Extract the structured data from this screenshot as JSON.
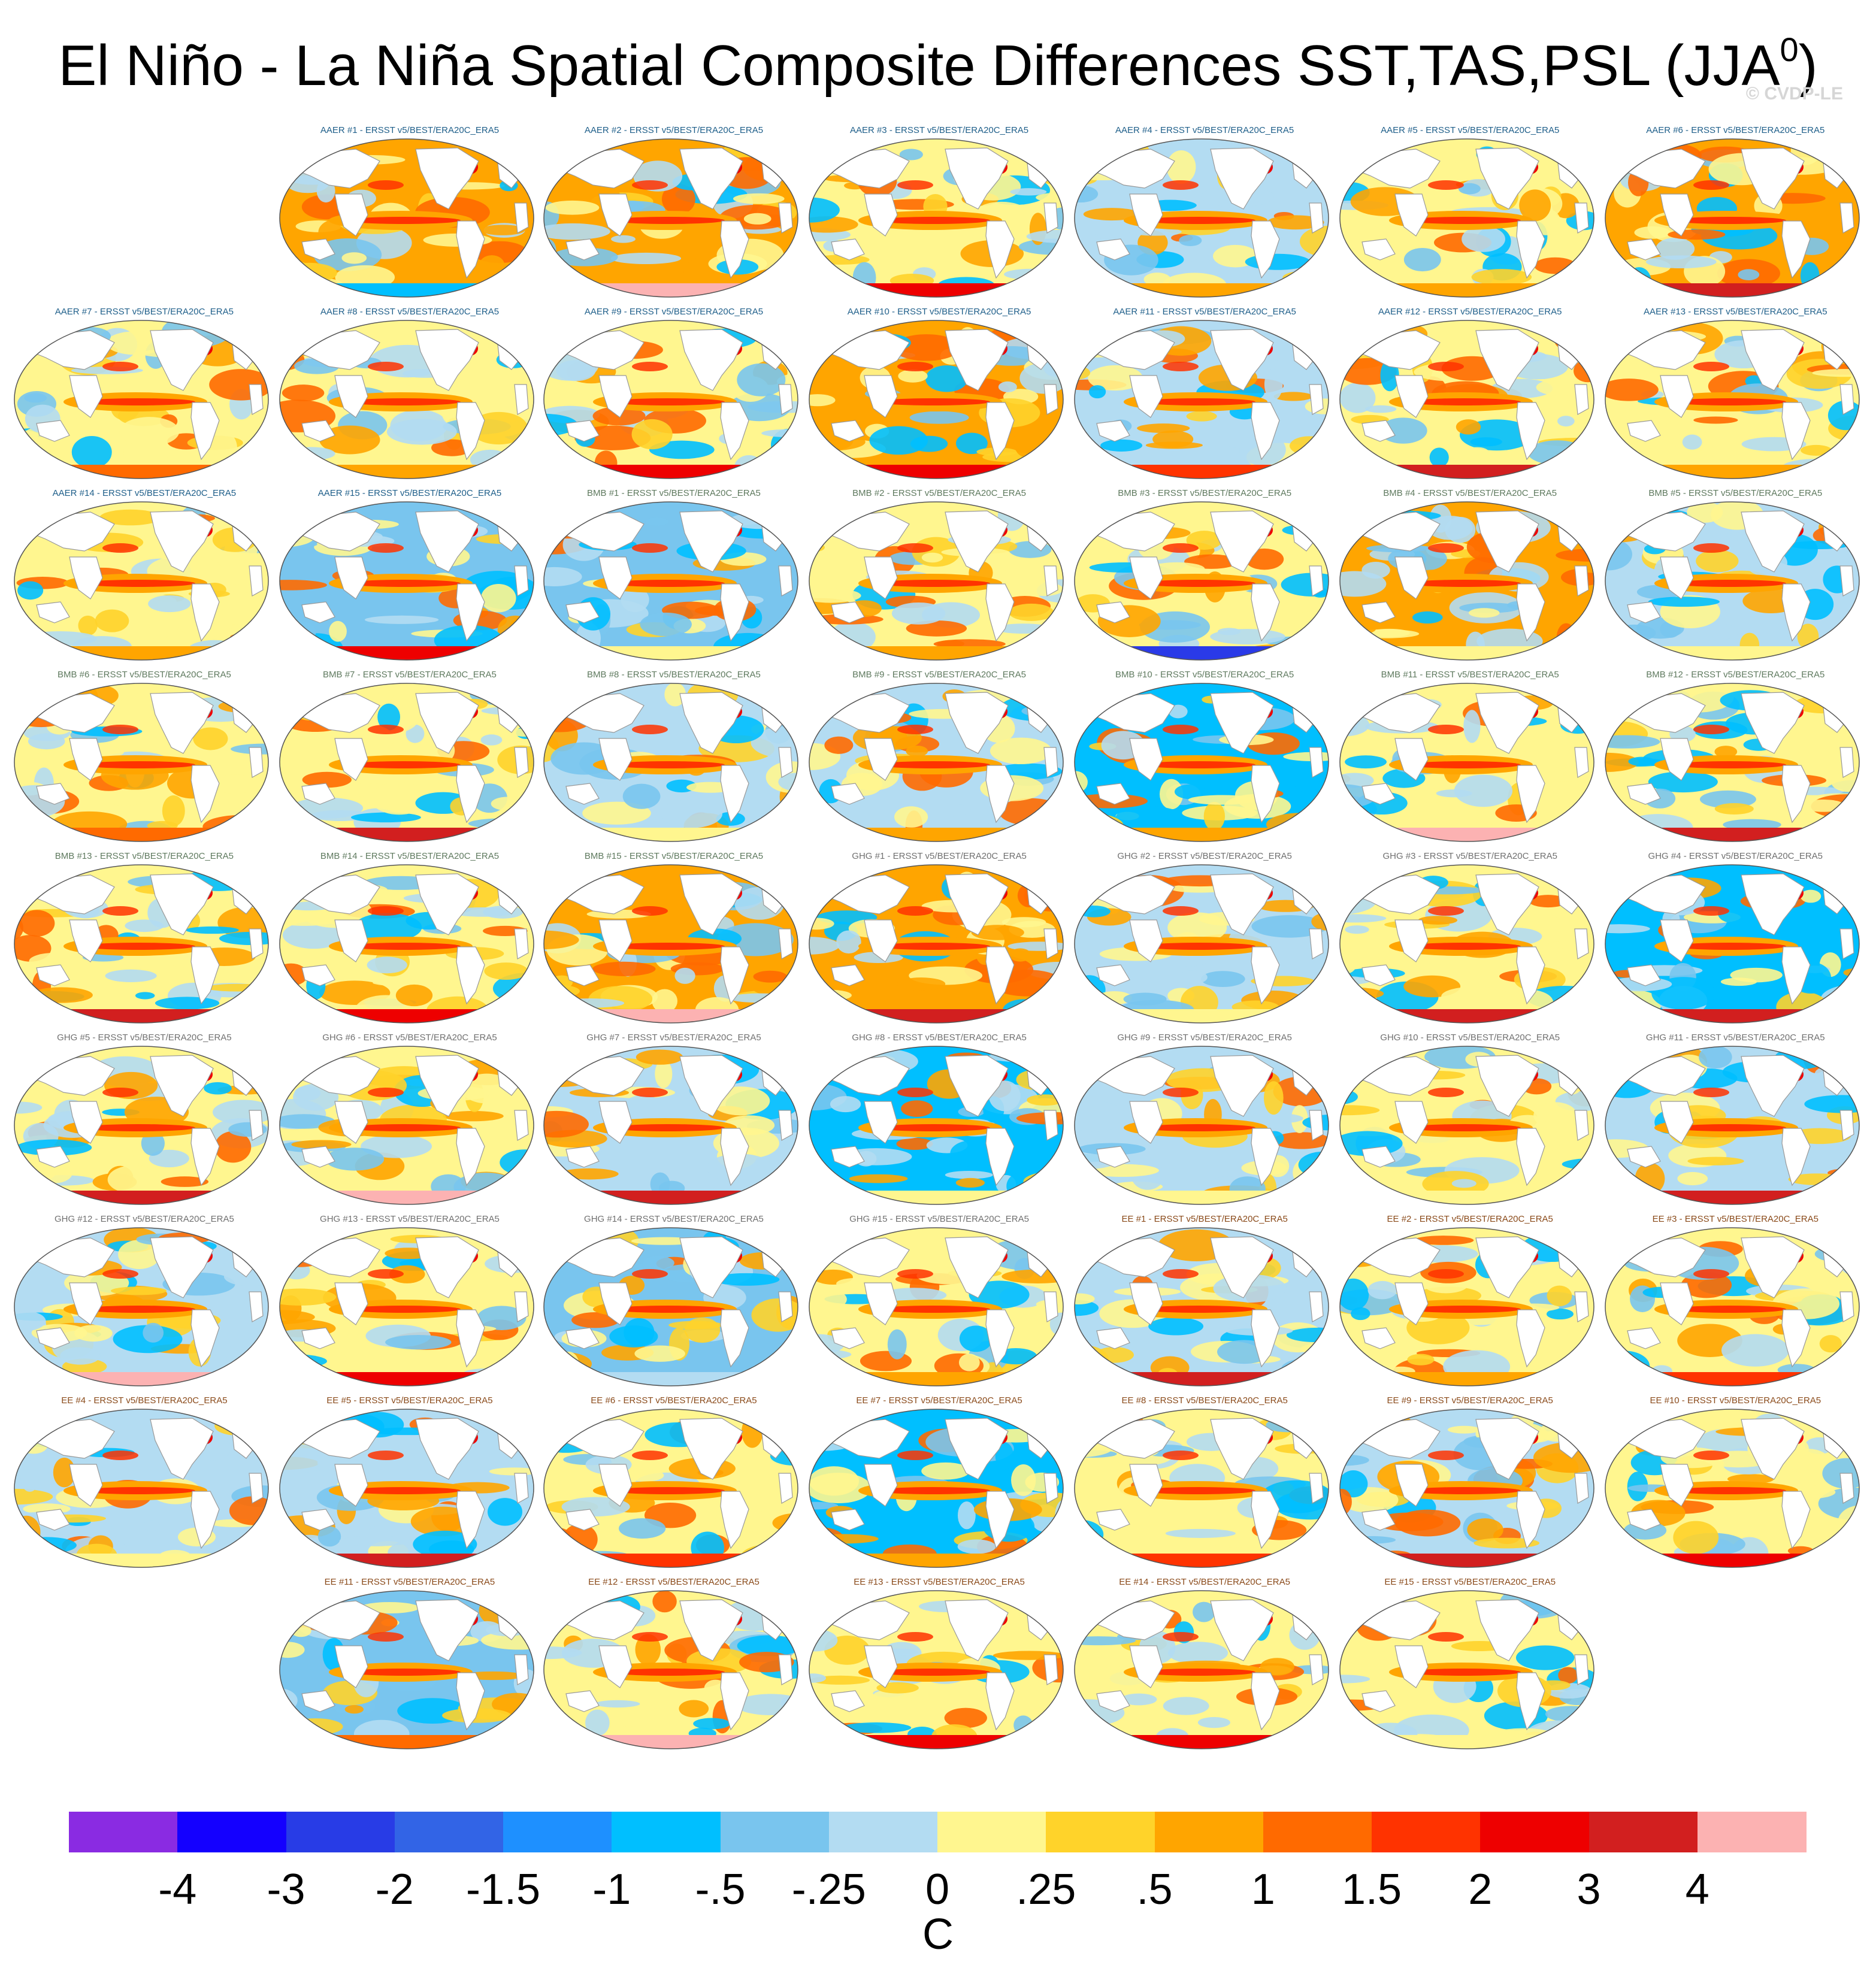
{
  "figure": {
    "title_main": "El Niño - La Niña Spatial Composite Differences SST,TAS,PSL (JJA",
    "title_sup": "0",
    "title_close": ")",
    "credit": "© CVDP-LE",
    "units": "C"
  },
  "panels": [
    {
      "label": "AAER #1 - ERSST v5/BEST/ERA20C_ERA5",
      "group": "AAER",
      "base": "orange",
      "ant": "deepskyblue"
    },
    {
      "label": "AAER #2 - ERSST v5/BEST/ERA20C_ERA5",
      "group": "AAER",
      "base": "orange",
      "ant": "pink"
    },
    {
      "label": "AAER #3 - ERSST v5/BEST/ERA20C_ERA5",
      "group": "AAER",
      "base": "yellow",
      "ant": "red"
    },
    {
      "label": "AAER #4 - ERSST v5/BEST/ERA20C_ERA5",
      "group": "AAER",
      "base": "lightblue",
      "ant": "orange"
    },
    {
      "label": "AAER #5 - ERSST v5/BEST/ERA20C_ERA5",
      "group": "AAER",
      "base": "yellow",
      "ant": "orange"
    },
    {
      "label": "AAER #6 - ERSST v5/BEST/ERA20C_ERA5",
      "group": "AAER",
      "base": "orange",
      "ant": "darkred"
    },
    {
      "label": "AAER #7 - ERSST v5/BEST/ERA20C_ERA5",
      "group": "AAER",
      "base": "yellow",
      "ant": "darkorange"
    },
    {
      "label": "AAER #8 - ERSST v5/BEST/ERA20C_ERA5",
      "group": "AAER",
      "base": "yellow",
      "ant": "orange"
    },
    {
      "label": "AAER #9 - ERSST v5/BEST/ERA20C_ERA5",
      "group": "AAER",
      "base": "yellow",
      "ant": "red"
    },
    {
      "label": "AAER #10 - ERSST v5/BEST/ERA20C_ERA5",
      "group": "AAER",
      "base": "orange",
      "ant": "red"
    },
    {
      "label": "AAER #11 - ERSST v5/BEST/ERA20C_ERA5",
      "group": "AAER",
      "base": "lightblue",
      "ant": "orangered"
    },
    {
      "label": "AAER #12 - ERSST v5/BEST/ERA20C_ERA5",
      "group": "AAER",
      "base": "yellow",
      "ant": "darkred"
    },
    {
      "label": "AAER #13 - ERSST v5/BEST/ERA20C_ERA5",
      "group": "AAER",
      "base": "yellow",
      "ant": "orange"
    },
    {
      "label": "AAER #14 - ERSST v5/BEST/ERA20C_ERA5",
      "group": "AAER",
      "base": "yellow",
      "ant": "orange"
    },
    {
      "label": "AAER #15 - ERSST v5/BEST/ERA20C_ERA5",
      "group": "AAER",
      "base": "skyblue",
      "ant": "red"
    },
    {
      "label": "BMB #1 - ERSST v5/BEST/ERA20C_ERA5",
      "group": "BMB",
      "base": "skyblue",
      "ant": "yellow"
    },
    {
      "label": "BMB #2 - ERSST v5/BEST/ERA20C_ERA5",
      "group": "BMB",
      "base": "yellow",
      "ant": "orange"
    },
    {
      "label": "BMB #3 - ERSST v5/BEST/ERA20C_ERA5",
      "group": "BMB",
      "base": "yellow",
      "ant": "blue"
    },
    {
      "label": "BMB #4 - ERSST v5/BEST/ERA20C_ERA5",
      "group": "BMB",
      "base": "orange",
      "ant": "yellow"
    },
    {
      "label": "BMB #5 - ERSST v5/BEST/ERA20C_ERA5",
      "group": "BMB",
      "base": "lightblue",
      "ant": "yellow"
    },
    {
      "label": "BMB #6 - ERSST v5/BEST/ERA20C_ERA5",
      "group": "BMB",
      "base": "yellow",
      "ant": "darkorange"
    },
    {
      "label": "BMB #7 - ERSST v5/BEST/ERA20C_ERA5",
      "group": "BMB",
      "base": "yellow",
      "ant": "darkred"
    },
    {
      "label": "BMB #8 - ERSST v5/BEST/ERA20C_ERA5",
      "group": "BMB",
      "base": "lightblue",
      "ant": "yellow"
    },
    {
      "label": "BMB #9 - ERSST v5/BEST/ERA20C_ERA5",
      "group": "BMB",
      "base": "lightblue",
      "ant": "orange"
    },
    {
      "label": "BMB #10 - ERSST v5/BEST/ERA20C_ERA5",
      "group": "BMB",
      "base": "deepskyblue",
      "ant": "orange"
    },
    {
      "label": "BMB #11 - ERSST v5/BEST/ERA20C_ERA5",
      "group": "BMB",
      "base": "yellow",
      "ant": "pink"
    },
    {
      "label": "BMB #12 - ERSST v5/BEST/ERA20C_ERA5",
      "group": "BMB",
      "base": "yellow",
      "ant": "darkred"
    },
    {
      "label": "BMB #13 - ERSST v5/BEST/ERA20C_ERA5",
      "group": "BMB",
      "base": "yellow",
      "ant": "darkred"
    },
    {
      "label": "BMB #14 - ERSST v5/BEST/ERA20C_ERA5",
      "group": "BMB",
      "base": "yellow",
      "ant": "red"
    },
    {
      "label": "BMB #15 - ERSST v5/BEST/ERA20C_ERA5",
      "group": "BMB",
      "base": "orange",
      "ant": "pink"
    },
    {
      "label": "GHG #1 - ERSST v5/BEST/ERA20C_ERA5",
      "group": "GHG",
      "base": "orange",
      "ant": "darkred"
    },
    {
      "label": "GHG #2 - ERSST v5/BEST/ERA20C_ERA5",
      "group": "GHG",
      "base": "lightblue",
      "ant": "yellow"
    },
    {
      "label": "GHG #3 - ERSST v5/BEST/ERA20C_ERA5",
      "group": "GHG",
      "base": "yellow",
      "ant": "darkred"
    },
    {
      "label": "GHG #4 - ERSST v5/BEST/ERA20C_ERA5",
      "group": "GHG",
      "base": "deepskyblue",
      "ant": "darkred"
    },
    {
      "label": "GHG #5 - ERSST v5/BEST/ERA20C_ERA5",
      "group": "GHG",
      "base": "yellow",
      "ant": "darkred"
    },
    {
      "label": "GHG #6 - ERSST v5/BEST/ERA20C_ERA5",
      "group": "GHG",
      "base": "yellow",
      "ant": "pink"
    },
    {
      "label": "GHG #7 - ERSST v5/BEST/ERA20C_ERA5",
      "group": "GHG",
      "base": "lightblue",
      "ant": "darkred"
    },
    {
      "label": "GHG #8 - ERSST v5/BEST/ERA20C_ERA5",
      "group": "GHG",
      "base": "deepskyblue",
      "ant": "yellow"
    },
    {
      "label": "GHG #9 - ERSST v5/BEST/ERA20C_ERA5",
      "group": "GHG",
      "base": "lightblue",
      "ant": "yellow"
    },
    {
      "label": "GHG #10 - ERSST v5/BEST/ERA20C_ERA5",
      "group": "GHG",
      "base": "yellow",
      "ant": "yellow"
    },
    {
      "label": "GHG #11 - ERSST v5/BEST/ERA20C_ERA5",
      "group": "GHG",
      "base": "lightblue",
      "ant": "darkred"
    },
    {
      "label": "GHG #12 - ERSST v5/BEST/ERA20C_ERA5",
      "group": "GHG",
      "base": "lightblue",
      "ant": "pink"
    },
    {
      "label": "GHG #13 - ERSST v5/BEST/ERA20C_ERA5",
      "group": "GHG",
      "base": "yellow",
      "ant": "red"
    },
    {
      "label": "GHG #14 - ERSST v5/BEST/ERA20C_ERA5",
      "group": "GHG",
      "base": "skyblue",
      "ant": "lightblue"
    },
    {
      "label": "GHG #15 - ERSST v5/BEST/ERA20C_ERA5",
      "group": "GHG",
      "base": "yellow",
      "ant": "orange"
    },
    {
      "label": "EE #1 - ERSST v5/BEST/ERA20C_ERA5",
      "group": "EE",
      "base": "lightblue",
      "ant": "darkred"
    },
    {
      "label": "EE #2 - ERSST v5/BEST/ERA20C_ERA5",
      "group": "EE",
      "base": "yellow",
      "ant": "orange"
    },
    {
      "label": "EE #3 - ERSST v5/BEST/ERA20C_ERA5",
      "group": "EE",
      "base": "yellow",
      "ant": "orangered"
    },
    {
      "label": "EE #4 - ERSST v5/BEST/ERA20C_ERA5",
      "group": "EE",
      "base": "lightblue",
      "ant": "yellow"
    },
    {
      "label": "EE #5 - ERSST v5/BEST/ERA20C_ERA5",
      "group": "EE",
      "base": "lightblue",
      "ant": "darkred"
    },
    {
      "label": "EE #6 - ERSST v5/BEST/ERA20C_ERA5",
      "group": "EE",
      "base": "yellow",
      "ant": "orangered"
    },
    {
      "label": "EE #7 - ERSST v5/BEST/ERA20C_ERA5",
      "group": "EE",
      "base": "deepskyblue",
      "ant": "orange"
    },
    {
      "label": "EE #8 - ERSST v5/BEST/ERA20C_ERA5",
      "group": "EE",
      "base": "yellow",
      "ant": "orangered"
    },
    {
      "label": "EE #9 - ERSST v5/BEST/ERA20C_ERA5",
      "group": "EE",
      "base": "lightblue",
      "ant": "darkred"
    },
    {
      "label": "EE #10 - ERSST v5/BEST/ERA20C_ERA5",
      "group": "EE",
      "base": "yellow",
      "ant": "red"
    },
    {
      "label": "EE #11 - ERSST v5/BEST/ERA20C_ERA5",
      "group": "EE",
      "base": "skyblue",
      "ant": "darkorange"
    },
    {
      "label": "EE #12 - ERSST v5/BEST/ERA20C_ERA5",
      "group": "EE",
      "base": "yellow",
      "ant": "pink"
    },
    {
      "label": "EE #13 - ERSST v5/BEST/ERA20C_ERA5",
      "group": "EE",
      "base": "yellow",
      "ant": "red"
    },
    {
      "label": "EE #14 - ERSST v5/BEST/ERA20C_ERA5",
      "group": "EE",
      "base": "yellow",
      "ant": "red"
    },
    {
      "label": "EE #15 - ERSST v5/BEST/ERA20C_ERA5",
      "group": "EE",
      "base": "yellow",
      "ant": "yellow"
    }
  ],
  "group_title_colors": {
    "AAER": "#1f5f8a",
    "BMB": "#5f7a5f",
    "GHG": "#707070",
    "EE": "#8a4a1a"
  },
  "map_colors": {
    "pink": "#fcb2b2",
    "darkred": "#d21f1f",
    "red": "#ee0000",
    "orangered": "#ff3300",
    "darkorange": "#ff6a00",
    "orange": "#ffa500",
    "gold": "#ffd32a",
    "yellow": "#fff68f",
    "lightblue": "#b3dcf2",
    "skyblue": "#79c5ee",
    "deepskyblue": "#00bfff",
    "dodgerblue": "#1e90ff",
    "royalblue": "#3a66e6",
    "blue": "#2a3ae8",
    "land": "#ffffff",
    "coast": "#999999",
    "outline": "#555555"
  },
  "colorbar": {
    "colors": [
      "#8a2be2",
      "#1400ff",
      "#283ce6",
      "#3264e6",
      "#1e90ff",
      "#00bfff",
      "#79c5ee",
      "#b3dcf2",
      "#fff68f",
      "#ffd32a",
      "#ffa500",
      "#ff6a00",
      "#ff3300",
      "#ee0000",
      "#d21f1f",
      "#fcb2b2"
    ],
    "tick_labels": [
      "-4",
      "-3",
      "-2",
      "-1.5",
      "-1",
      "-.5",
      "-.25",
      "0",
      ".25",
      ".5",
      "1",
      "1.5",
      "2",
      "3",
      "4"
    ]
  }
}
